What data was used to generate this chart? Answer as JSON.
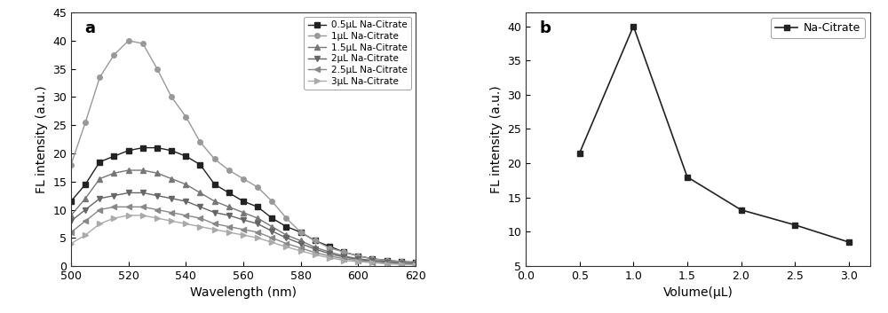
{
  "panel_a": {
    "xlabel": "Wavelength (nm)",
    "ylabel": "FL intensity (a.u.)",
    "label": "a",
    "xlim": [
      500,
      620
    ],
    "ylim": [
      0,
      45
    ],
    "xticks": [
      500,
      520,
      540,
      560,
      580,
      600,
      620
    ],
    "yticks": [
      0,
      5,
      10,
      15,
      20,
      25,
      30,
      35,
      40,
      45
    ],
    "series": [
      {
        "label": "0.5μL Na-Citrate",
        "marker": "s",
        "color": "#222222",
        "x": [
          500,
          505,
          510,
          515,
          520,
          525,
          530,
          535,
          540,
          545,
          550,
          555,
          560,
          565,
          570,
          575,
          580,
          585,
          590,
          595,
          600,
          605,
          610,
          615,
          620
        ],
        "y": [
          11.5,
          14.5,
          18.5,
          19.5,
          20.5,
          21.0,
          21.0,
          20.5,
          19.5,
          18.0,
          14.5,
          13.0,
          11.5,
          10.5,
          8.5,
          7.0,
          6.0,
          4.5,
          3.5,
          2.5,
          1.8,
          1.3,
          1.0,
          0.8,
          0.7
        ]
      },
      {
        "label": "1μL Na-Citrate",
        "marker": "o",
        "color": "#999999",
        "x": [
          500,
          505,
          510,
          515,
          520,
          525,
          530,
          535,
          540,
          545,
          550,
          555,
          560,
          565,
          570,
          575,
          580,
          585,
          590,
          595,
          600,
          605,
          610,
          615,
          620
        ],
        "y": [
          18.0,
          25.5,
          33.5,
          37.5,
          40.0,
          39.5,
          35.0,
          30.0,
          26.5,
          22.0,
          19.0,
          17.0,
          15.5,
          14.0,
          11.5,
          8.5,
          6.0,
          4.5,
          3.2,
          2.5,
          1.8,
          1.3,
          1.0,
          0.8,
          0.6
        ]
      },
      {
        "label": "1.5μL Na-Citrate",
        "marker": "^",
        "color": "#777777",
        "x": [
          500,
          505,
          510,
          515,
          520,
          525,
          530,
          535,
          540,
          545,
          550,
          555,
          560,
          565,
          570,
          575,
          580,
          585,
          590,
          595,
          600,
          605,
          610,
          615,
          620
        ],
        "y": [
          9.0,
          12.0,
          15.5,
          16.5,
          17.0,
          17.0,
          16.5,
          15.5,
          14.5,
          13.0,
          11.5,
          10.5,
          9.5,
          8.5,
          7.0,
          5.5,
          4.5,
          3.3,
          2.5,
          1.8,
          1.3,
          1.0,
          0.8,
          0.6,
          0.5
        ]
      },
      {
        "label": "2μL Na-Citrate",
        "marker": "v",
        "color": "#666666",
        "x": [
          500,
          505,
          510,
          515,
          520,
          525,
          530,
          535,
          540,
          545,
          550,
          555,
          560,
          565,
          570,
          575,
          580,
          585,
          590,
          595,
          600,
          605,
          610,
          615,
          620
        ],
        "y": [
          8.0,
          10.0,
          12.0,
          12.5,
          13.0,
          13.0,
          12.5,
          12.0,
          11.5,
          10.5,
          9.5,
          9.0,
          8.2,
          7.5,
          6.2,
          5.0,
          4.0,
          3.0,
          2.2,
          1.6,
          1.2,
          0.9,
          0.7,
          0.5,
          0.4
        ]
      },
      {
        "label": "2.5μL Na-Citrate",
        "marker": "<",
        "color": "#888888",
        "x": [
          500,
          505,
          510,
          515,
          520,
          525,
          530,
          535,
          540,
          545,
          550,
          555,
          560,
          565,
          570,
          575,
          580,
          585,
          590,
          595,
          600,
          605,
          610,
          615,
          620
        ],
        "y": [
          6.0,
          8.0,
          10.0,
          10.5,
          10.5,
          10.5,
          10.0,
          9.5,
          9.0,
          8.5,
          7.5,
          7.0,
          6.5,
          6.0,
          5.0,
          4.0,
          3.2,
          2.4,
          1.8,
          1.3,
          1.0,
          0.7,
          0.5,
          0.4,
          0.3
        ]
      },
      {
        "label": "3μL Na-Citrate",
        "marker": ">",
        "color": "#aaaaaa",
        "x": [
          500,
          505,
          510,
          515,
          520,
          525,
          530,
          535,
          540,
          545,
          550,
          555,
          560,
          565,
          570,
          575,
          580,
          585,
          590,
          595,
          600,
          605,
          610,
          615,
          620
        ],
        "y": [
          4.0,
          5.5,
          7.5,
          8.5,
          9.0,
          9.0,
          8.5,
          8.0,
          7.5,
          7.0,
          6.5,
          6.0,
          5.5,
          5.0,
          4.2,
          3.4,
          2.7,
          2.0,
          1.5,
          1.0,
          0.8,
          0.6,
          0.4,
          0.3,
          0.2
        ]
      }
    ]
  },
  "panel_b": {
    "xlabel": "Volume(μL)",
    "ylabel": "FL intensity (a.u.)",
    "label": "b",
    "legend_label": "Na-Citrate",
    "xlim": [
      0.0,
      3.2
    ],
    "ylim": [
      5,
      42
    ],
    "xticks": [
      0.0,
      0.5,
      1.0,
      1.5,
      2.0,
      2.5,
      3.0
    ],
    "yticks": [
      5,
      10,
      15,
      20,
      25,
      30,
      35,
      40
    ],
    "x": [
      0.5,
      1.0,
      1.5,
      2.0,
      2.5,
      3.0
    ],
    "y": [
      21.5,
      40.0,
      18.0,
      13.2,
      11.0,
      8.5
    ],
    "marker": "s",
    "color": "#222222",
    "linewidth": 1.2,
    "markersize": 5
  }
}
